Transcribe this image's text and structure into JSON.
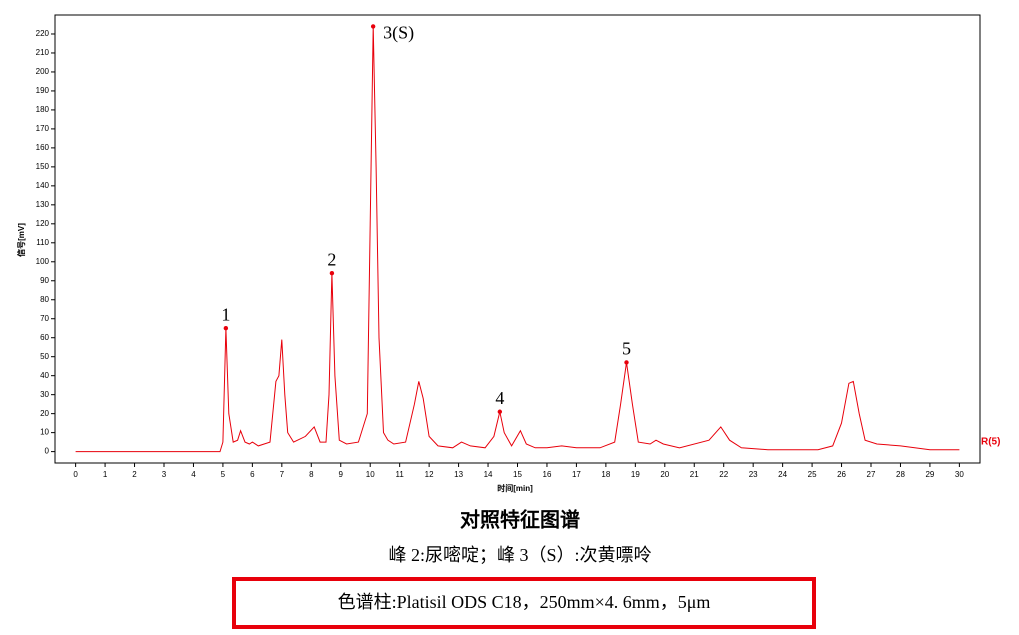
{
  "chart_data": {
    "type": "line",
    "title": "对照特征图谱",
    "subtitle": "峰 2:尿嘧啶；峰 3（S）:次黄嘌呤",
    "note": "色谱柱:Platisil ODS C18，250mm×4. 6mm，5μm",
    "xlabel": "时间[min]",
    "ylabel": "信号[mV]",
    "xlim": [
      -0.7,
      30.7
    ],
    "ylim": [
      -6,
      230
    ],
    "xticks": [
      0,
      1,
      2,
      3,
      4,
      5,
      6,
      7,
      8,
      9,
      10,
      11,
      12,
      13,
      14,
      15,
      16,
      17,
      18,
      19,
      20,
      21,
      22,
      23,
      24,
      25,
      26,
      27,
      28,
      29,
      30
    ],
    "yticks": [
      0,
      10,
      20,
      30,
      40,
      50,
      60,
      70,
      80,
      90,
      100,
      110,
      120,
      130,
      140,
      150,
      160,
      170,
      180,
      190,
      200,
      210,
      220
    ],
    "x": [
      0,
      4.9,
      5.0,
      5.1,
      5.2,
      5.35,
      5.5,
      5.6,
      5.75,
      5.9,
      6.0,
      6.2,
      6.6,
      6.8,
      6.9,
      7.0,
      7.1,
      7.2,
      7.4,
      7.8,
      8.1,
      8.3,
      8.5,
      8.6,
      8.7,
      8.8,
      8.95,
      9.2,
      9.6,
      9.9,
      10.0,
      10.1,
      10.2,
      10.3,
      10.45,
      10.6,
      10.8,
      11.2,
      11.5,
      11.65,
      11.8,
      12.0,
      12.3,
      12.8,
      13.1,
      13.4,
      13.9,
      14.2,
      14.4,
      14.55,
      14.8,
      15.1,
      15.3,
      15.6,
      16.0,
      16.5,
      17.0,
      17.8,
      18.3,
      18.5,
      18.7,
      18.9,
      19.1,
      19.5,
      19.7,
      19.95,
      20.5,
      21.5,
      21.9,
      22.2,
      22.6,
      23.5,
      24.5,
      25.2,
      25.7,
      26.0,
      26.25,
      26.4,
      26.6,
      26.8,
      27.2,
      28,
      29,
      30
    ],
    "series": [
      {
        "name": "R(5)",
        "color": "#e8000b",
        "values": [
          0,
          0,
          5,
          65,
          20,
          5,
          6,
          11,
          5,
          4,
          5,
          3,
          5,
          37,
          40,
          59,
          30,
          10,
          5,
          8,
          13,
          5,
          5,
          30,
          94,
          40,
          6,
          4,
          5,
          20,
          120,
          224,
          150,
          60,
          10,
          6,
          4,
          5,
          25,
          37,
          28,
          8,
          3,
          2,
          5,
          3,
          2,
          8,
          21,
          10,
          3,
          11,
          4,
          2,
          2,
          3,
          2,
          2,
          5,
          25,
          47,
          25,
          5,
          4,
          6,
          4,
          2,
          6,
          13,
          6,
          2,
          1,
          1,
          1,
          3,
          15,
          36,
          37,
          20,
          6,
          4,
          3,
          1,
          1
        ]
      }
    ],
    "peaks": [
      {
        "label": "1",
        "x": 5.1,
        "value": 65
      },
      {
        "label": "2",
        "x": 8.7,
        "value": 94
      },
      {
        "label": "3(S)",
        "x": 10.1,
        "value": 224
      },
      {
        "label": "4",
        "x": 14.4,
        "value": 21
      },
      {
        "label": "5",
        "x": 18.7,
        "value": 47
      }
    ]
  }
}
